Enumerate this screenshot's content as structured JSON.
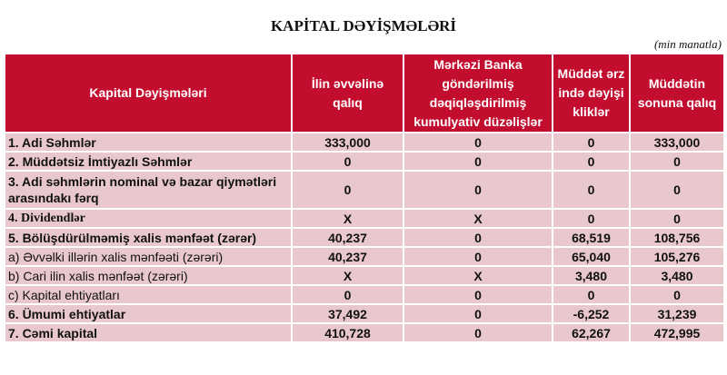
{
  "title": "KAPİTAL DƏYİŞMƏLƏRİ",
  "unit": "(min manatla)",
  "columns": [
    "Kapital Dəyişmələri",
    "İlin əvvəlinə qalıq",
    "Mərkəzi Banka göndərilmiş dəqiqləşdirilmiş kumulyativ düzəlişlər",
    "Müddət ərzində dəyişikliklər",
    "Müddətin sonuna qalıq"
  ],
  "rows": [
    {
      "label": "1. Adi Səhmlər",
      "values": [
        "333,000",
        "0",
        "0",
        "333,000"
      ]
    },
    {
      "label": "2. Müddətsiz İmtiyazlı Səhmlər",
      "values": [
        "0",
        "0",
        "0",
        "0"
      ]
    },
    {
      "label": "3. Adi səhmlərin nominal və bazar qiymətləri arasındakı fərq",
      "values": [
        "0",
        "0",
        "0",
        "0"
      ]
    },
    {
      "label": "4. Dividendlər",
      "values": [
        "X",
        "X",
        "0",
        "0"
      ]
    },
    {
      "label": "5. Bölüşdürülməmiş xalis mənfəət (zərər)",
      "values": [
        "40,237",
        "0",
        "68,519",
        "108,756"
      ]
    },
    {
      "label": "a) Əvvəlki illərin xalis mənfəəti (zərəri)",
      "values": [
        "40,237",
        "0",
        "65,040",
        "105,276"
      ]
    },
    {
      "label": "b) Cari ilin xalis mənfəət (zərəri)",
      "values": [
        "X",
        "X",
        "3,480",
        "3,480"
      ]
    },
    {
      "label": "c) Kapital ehtiyatları",
      "values": [
        "0",
        "0",
        "0",
        "0"
      ]
    },
    {
      "label": "6. Ümumi ehtiyatlar",
      "values": [
        "37,492",
        "0",
        "-6,252",
        "31,239"
      ]
    },
    {
      "label": "7. Cəmi kapital",
      "values": [
        "410,728",
        "0",
        "62,267",
        "472,995"
      ]
    }
  ],
  "colors": {
    "header_bg": "#c30d2f",
    "row_bg": "#e9c8cd"
  }
}
